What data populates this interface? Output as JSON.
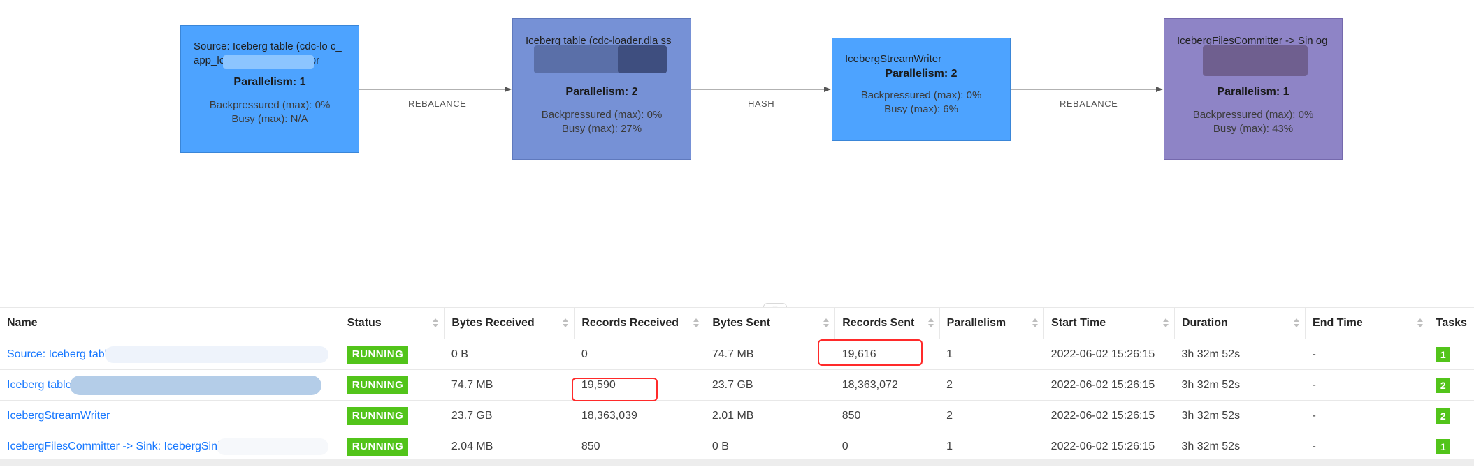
{
  "graph": {
    "nodes": [
      {
        "title": "Source: Iceberg table (cdc-lo                    c_app_log_test_ods, wat...tor",
        "parallelism": "Parallelism: 1",
        "backpressured": "Backpressured (max): 0%",
        "busy": "Busy (max): N/A",
        "color": "#4da3ff"
      },
      {
        "title": "Iceberg table (cdc-loader.dla                        ss",
        "parallelism": "Parallelism: 2",
        "backpressured": "Backpressured (max): 0%",
        "busy": "Busy (max): 27%",
        "color": "#7691d6"
      },
      {
        "title": "IcebergStreamWriter",
        "parallelism": "Parallelism: 2",
        "backpressured": "Backpressured (max): 0%",
        "busy": "Busy (max): 6%",
        "color": "#4da3ff"
      },
      {
        "title": "IcebergFilesCommitter -> Sin                    og",
        "parallelism": "Parallelism: 1",
        "backpressured": "Backpressured (max): 0%",
        "busy": "Busy (max): 43%",
        "color": "#8e84c6"
      }
    ],
    "edges": [
      "REBALANCE",
      "HASH",
      "REBALANCE"
    ],
    "divider": "..."
  },
  "table": {
    "columns": [
      "Name",
      "Status",
      "Bytes Received",
      "Records Received",
      "Bytes Sent",
      "Records Sent",
      "Parallelism",
      "Start Time",
      "Duration",
      "End Time",
      "Tasks"
    ],
    "rows": [
      {
        "name": "Source: Iceberg table",
        "status": "RUNNING",
        "bytes_received": "0 B",
        "records_received": "0",
        "bytes_sent": "74.7 MB",
        "records_sent": "19,616",
        "parallelism": "1",
        "start_time": "2022-06-02 15:26:15",
        "duration": "3h 32m 52s",
        "end_time": "-",
        "tasks": "1"
      },
      {
        "name": "Iceberg table                                s...",
        "status": "RUNNING",
        "bytes_received": "74.7 MB",
        "records_received": "19,590",
        "bytes_sent": "23.7 GB",
        "records_sent": "18,363,072",
        "parallelism": "2",
        "start_time": "2022-06-02 15:26:15",
        "duration": "3h 32m 52s",
        "end_time": "-",
        "tasks": "2"
      },
      {
        "name": "IcebergStreamWriter",
        "status": "RUNNING",
        "bytes_received": "23.7 GB",
        "records_received": "18,363,039",
        "bytes_sent": "2.01 MB",
        "records_sent": "850",
        "parallelism": "2",
        "start_time": "2022-06-02 15:26:15",
        "duration": "3h 32m 52s",
        "end_time": "-",
        "tasks": "2"
      },
      {
        "name": "IcebergFilesCommitter -> Sink: IcebergSink",
        "status": "RUNNING",
        "bytes_received": "2.04 MB",
        "records_received": "850",
        "bytes_sent": "0 B",
        "records_sent": "0",
        "parallelism": "1",
        "start_time": "2022-06-02 15:26:15",
        "duration": "3h 32m 52s",
        "end_time": "-",
        "tasks": "1"
      }
    ]
  },
  "colors": {
    "running": "#52c41a",
    "link": "#1677ff",
    "highlight": "#ff2a2a"
  }
}
